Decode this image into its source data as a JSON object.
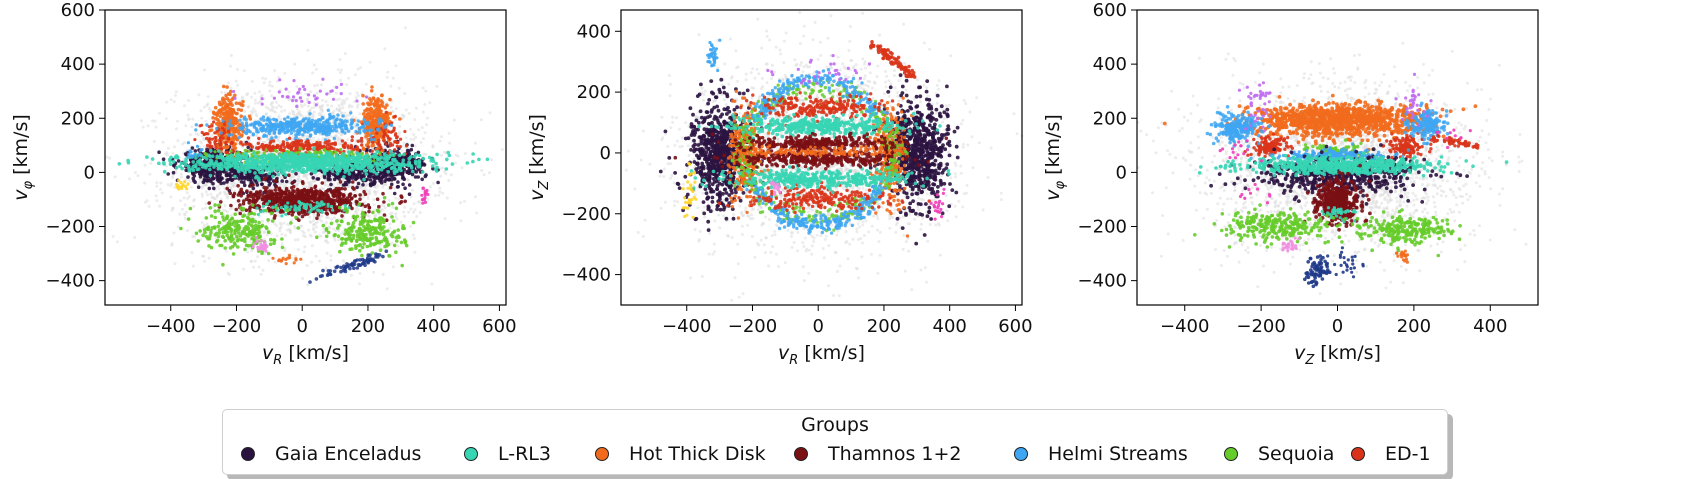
{
  "colors": {
    "background_points": "#dcdcdc",
    "gaia_enceladus": "#2b1340",
    "l_rl3": "#36d5b4",
    "hot_thick_disk": "#f26b1d",
    "thamnos": "#7a0f14",
    "helmi": "#3ea6f2",
    "sequoia": "#66cc2a",
    "ed1": "#d9341a",
    "extra_navy": "#1f3a8a",
    "extra_violet": "#c06cf0",
    "extra_pink": "#f08fe0",
    "extra_yellow": "#ffd52a",
    "extra_magenta": "#ee3fb8"
  },
  "legend": {
    "title": "Groups",
    "items": [
      {
        "label": "Gaia Enceladus",
        "color": "#2b1340"
      },
      {
        "label": "L-RL3",
        "color": "#36d5b4"
      },
      {
        "label": "Hot Thick Disk",
        "color": "#f26b1d"
      },
      {
        "label": "Thamnos 1+2",
        "color": "#7a0f14"
      },
      {
        "label": "Helmi Streams",
        "color": "#3ea6f2"
      },
      {
        "label": "Sequoia",
        "color": "#66cc2a"
      },
      {
        "label": "ED-1",
        "color": "#d9341a"
      }
    ]
  },
  "chart_data": [
    {
      "type": "scatter",
      "xlabel": "v_R [km/s]",
      "ylabel": "v_φ [km/s]",
      "xlim": [
        -600,
        620
      ],
      "ylim": [
        -490,
        600
      ],
      "xticks": [
        -400,
        -200,
        0,
        200,
        400,
        600
      ],
      "yticks": [
        -400,
        -200,
        0,
        200,
        400,
        600
      ],
      "grid": false,
      "series": [
        {
          "name": "Gaia Enceladus",
          "x": [
            -280,
            -220,
            -150,
            150,
            220,
            280,
            -250,
            250
          ],
          "y": [
            20,
            0,
            -20,
            -20,
            0,
            20,
            40,
            40
          ]
        },
        {
          "name": "L-RL3",
          "x": [
            -200,
            -100,
            0,
            100,
            200
          ],
          "y": [
            30,
            40,
            40,
            40,
            30
          ]
        },
        {
          "name": "Hot Thick Disk",
          "x": [
            -220,
            -200,
            220,
            240
          ],
          "y": [
            200,
            120,
            200,
            120
          ]
        },
        {
          "name": "Thamnos 1+2",
          "x": [
            -100,
            0,
            100
          ],
          "y": [
            -110,
            -120,
            -110
          ]
        },
        {
          "name": "Helmi Streams",
          "x": [
            -100,
            0,
            100
          ],
          "y": [
            170,
            180,
            170
          ]
        },
        {
          "name": "Sequoia",
          "x": [
            -200,
            200
          ],
          "y": [
            -220,
            -220
          ]
        },
        {
          "name": "ED-1",
          "x": [
            -30,
            30
          ],
          "y": [
            90,
            90
          ]
        }
      ]
    },
    {
      "type": "scatter",
      "xlabel": "v_R [km/s]",
      "ylabel": "v_Z [km/s]",
      "xlim": [
        -600,
        620
      ],
      "ylim": [
        -500,
        470
      ],
      "xticks": [
        -400,
        -200,
        0,
        200,
        400,
        600
      ],
      "yticks": [
        -400,
        -200,
        0,
        200,
        400
      ],
      "grid": false,
      "series": [
        {
          "name": "Gaia Enceladus",
          "x": [
            -300,
            300,
            -250,
            250
          ],
          "y": [
            0,
            0,
            60,
            -60
          ]
        },
        {
          "name": "L-RL3",
          "x": [
            -100,
            0,
            100
          ],
          "y": [
            90,
            -80,
            90
          ]
        },
        {
          "name": "Hot Thick Disk",
          "x": [
            -200,
            200
          ],
          "y": [
            0,
            0
          ]
        },
        {
          "name": "Thamnos 1+2",
          "x": [
            -100,
            0,
            100
          ],
          "y": [
            30,
            -20,
            30
          ]
        },
        {
          "name": "Helmi Streams",
          "x": [
            0,
            0
          ],
          "y": [
            240,
            -240
          ]
        },
        {
          "name": "Sequoia",
          "x": [
            -100,
            100
          ],
          "y": [
            150,
            -150
          ]
        },
        {
          "name": "ED-1",
          "x": [
            200,
            250
          ],
          "y": [
            330,
            270
          ]
        }
      ]
    },
    {
      "type": "scatter",
      "xlabel": "v_Z [km/s]",
      "ylabel": "v_φ [km/s]",
      "xlim": [
        -525,
        525
      ],
      "ylim": [
        -490,
        600
      ],
      "xticks": [
        -400,
        -200,
        0,
        200,
        400
      ],
      "yticks": [
        -400,
        -200,
        0,
        200,
        400,
        600
      ],
      "grid": false,
      "series": [
        {
          "name": "Gaia Enceladus",
          "x": [
            -50,
            0,
            50
          ],
          "y": [
            0,
            -30,
            0
          ]
        },
        {
          "name": "L-RL3",
          "x": [
            -100,
            0,
            100
          ],
          "y": [
            20,
            25,
            20
          ]
        },
        {
          "name": "Hot Thick Disk",
          "x": [
            -50,
            0,
            50
          ],
          "y": [
            190,
            200,
            190
          ]
        },
        {
          "name": "Thamnos 1+2",
          "x": [
            -20,
            20
          ],
          "y": [
            -100,
            -100
          ]
        },
        {
          "name": "Helmi Streams",
          "x": [
            -250,
            230
          ],
          "y": [
            160,
            170
          ]
        },
        {
          "name": "Sequoia",
          "x": [
            -170,
            170
          ],
          "y": [
            -200,
            -210
          ]
        },
        {
          "name": "ED-1",
          "x": [
            -200,
            200,
            320
          ],
          "y": [
            90,
            90,
            100
          ]
        }
      ]
    }
  ],
  "axis_text": {
    "p1": {
      "x_main": "v",
      "x_sub": "R",
      "x_unit": " [km/s]",
      "y_main": "v",
      "y_sub": "φ",
      "y_unit": " [km/s]"
    },
    "p2": {
      "x_main": "v",
      "x_sub": "R",
      "x_unit": " [km/s]",
      "y_main": "v",
      "y_sub": "Z",
      "y_unit": " [km/s]"
    },
    "p3": {
      "x_main": "v",
      "x_sub": "Z",
      "x_unit": " [km/s]",
      "y_main": "v",
      "y_sub": "φ",
      "y_unit": " [km/s]"
    }
  }
}
